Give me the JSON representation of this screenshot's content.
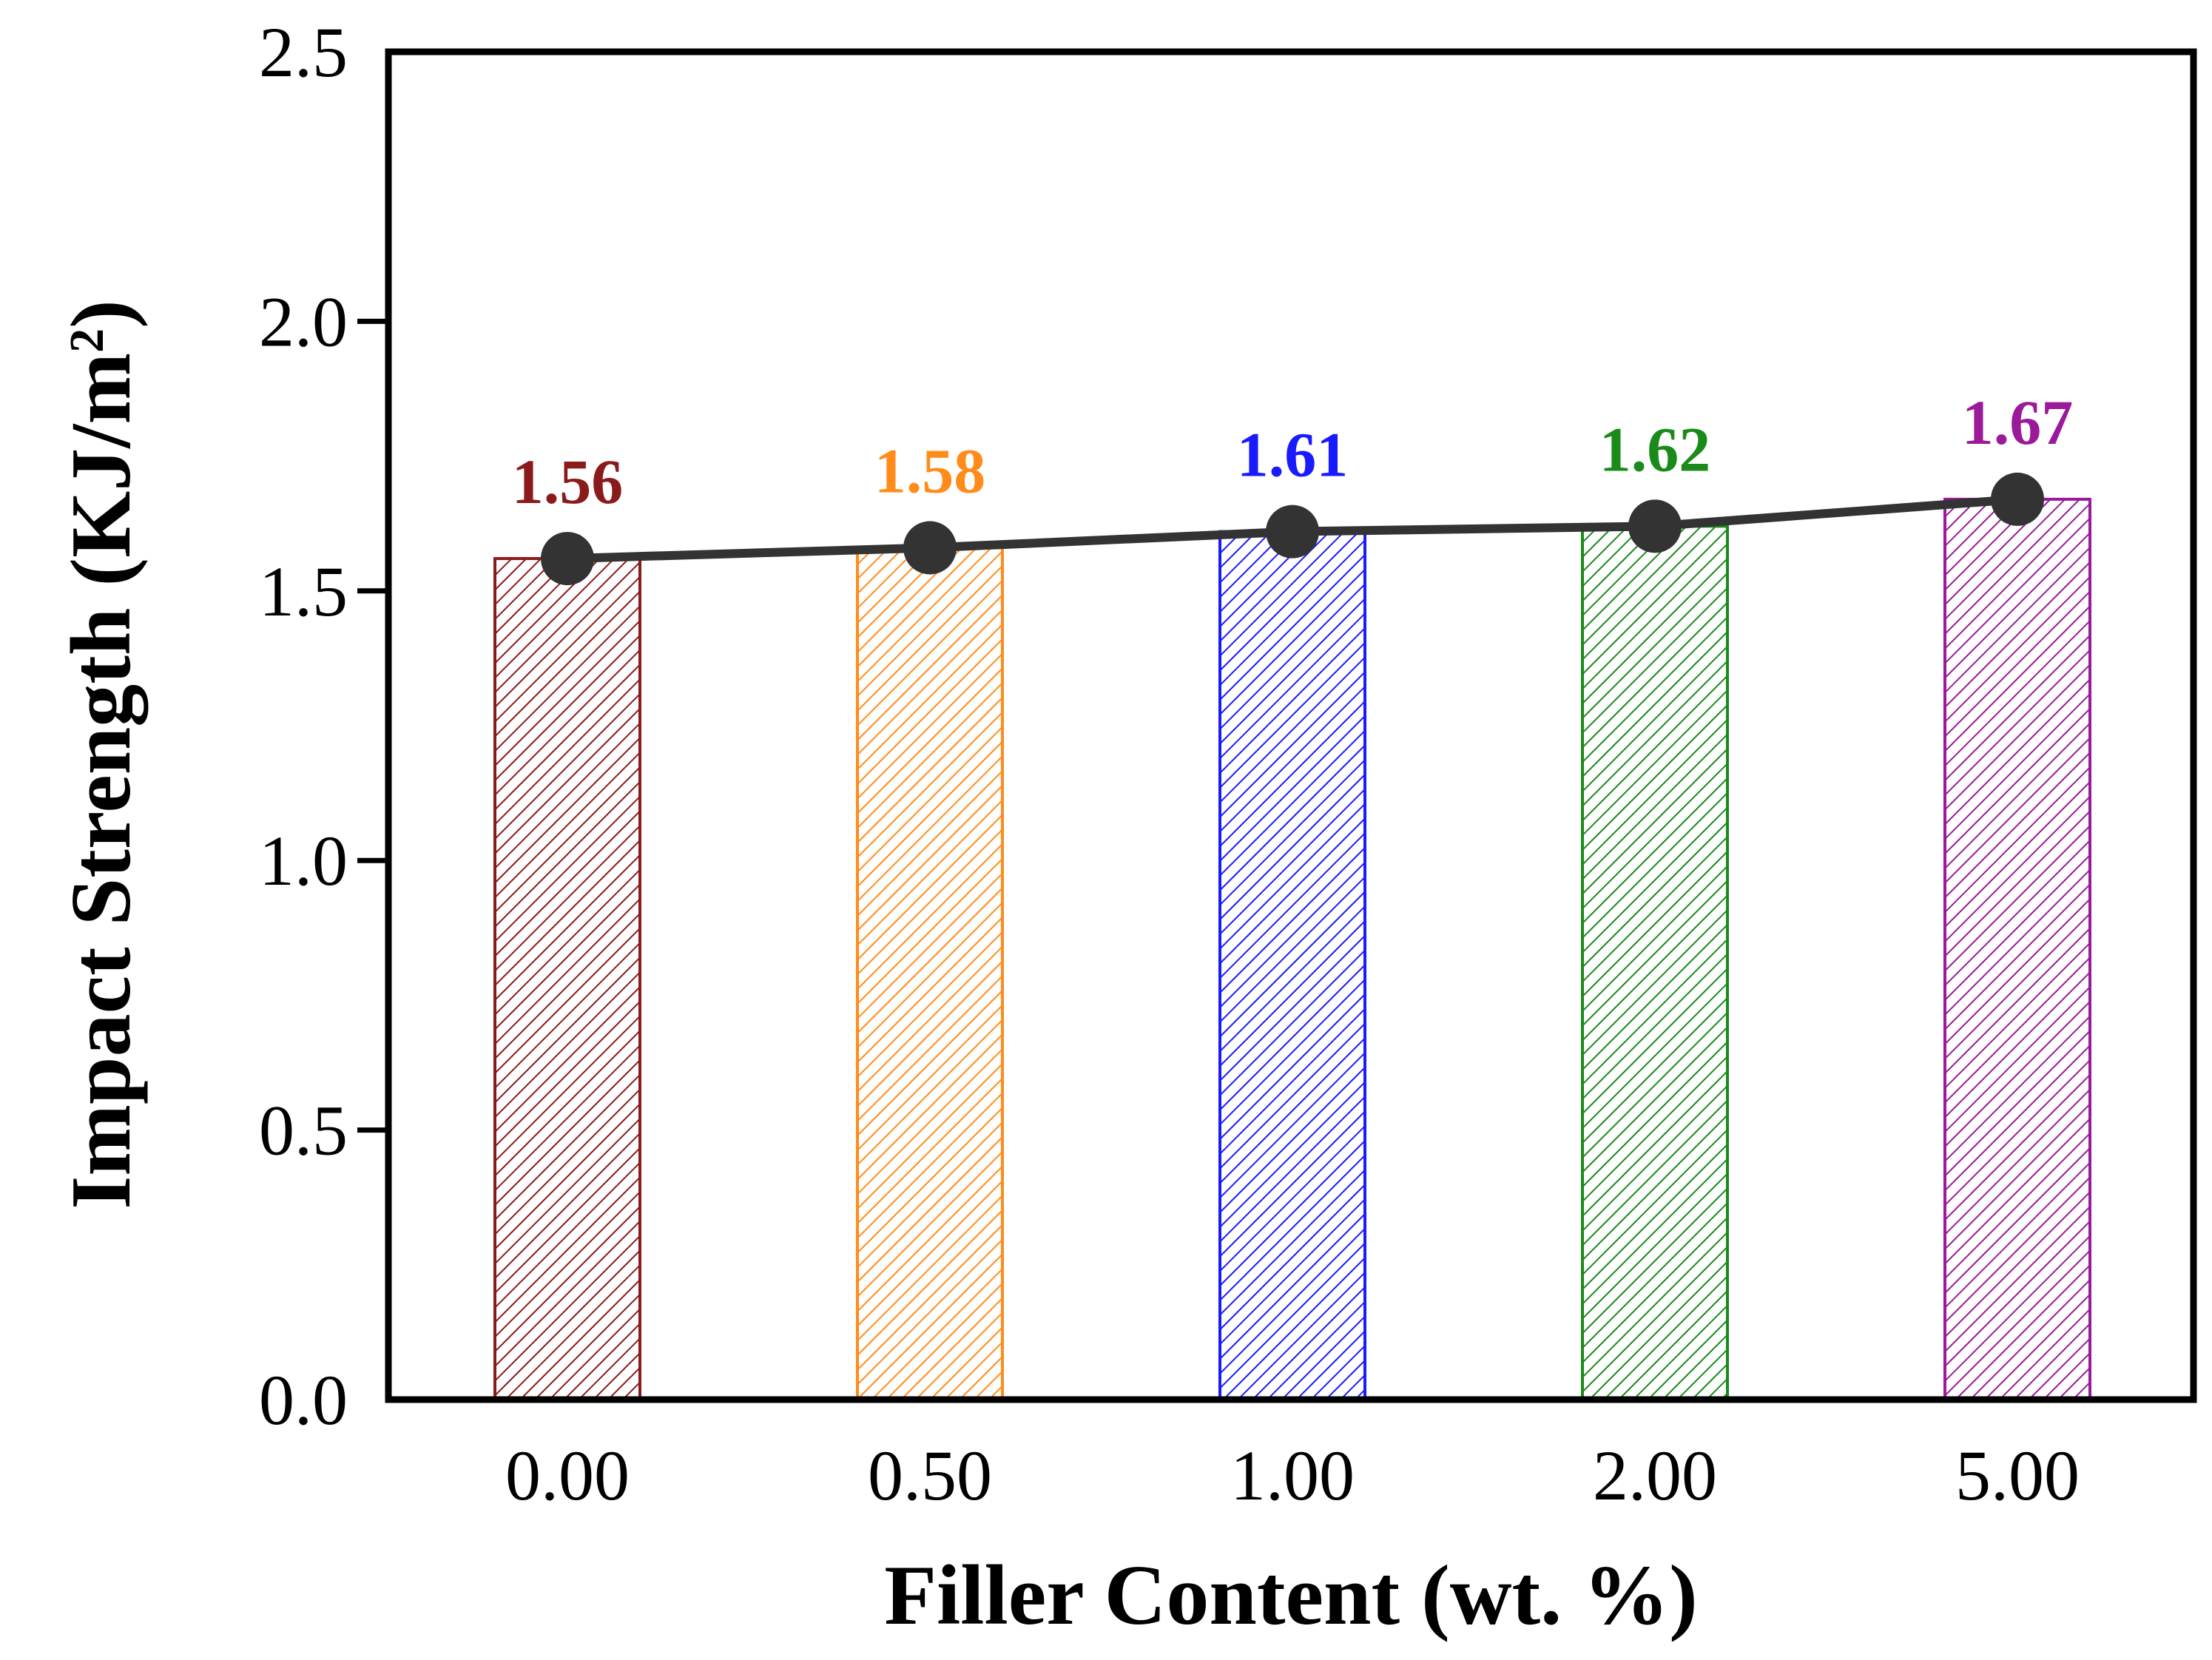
{
  "chart_data": {
    "type": "bar",
    "title": "",
    "xlabel": "Filler Content (wt. %)",
    "ylabel": "Impact Strength (KJ/m",
    "ylabel_superscript": "2",
    "ylabel_close": ")",
    "categories": [
      "0.00",
      "0.50",
      "1.00",
      "2.00",
      "5.00"
    ],
    "values": [
      1.56,
      1.58,
      1.61,
      1.62,
      1.67
    ],
    "value_labels": [
      "1.56",
      "1.58",
      "1.61",
      "1.62",
      "1.67"
    ],
    "bar_colors": [
      "#8b1a1a",
      "#ff8c1a",
      "#1a1aff",
      "#1a8a1a",
      "#9a1a9a"
    ],
    "line_color": "#333333",
    "marker_color": "#333333",
    "ylim": [
      0,
      2.5
    ],
    "yticks": [
      "0.0",
      "0.5",
      "1.0",
      "1.5",
      "2.0",
      "2.5"
    ],
    "grid": false,
    "bar_fill": "diagonal-hatch",
    "overlay": "line-with-markers"
  }
}
